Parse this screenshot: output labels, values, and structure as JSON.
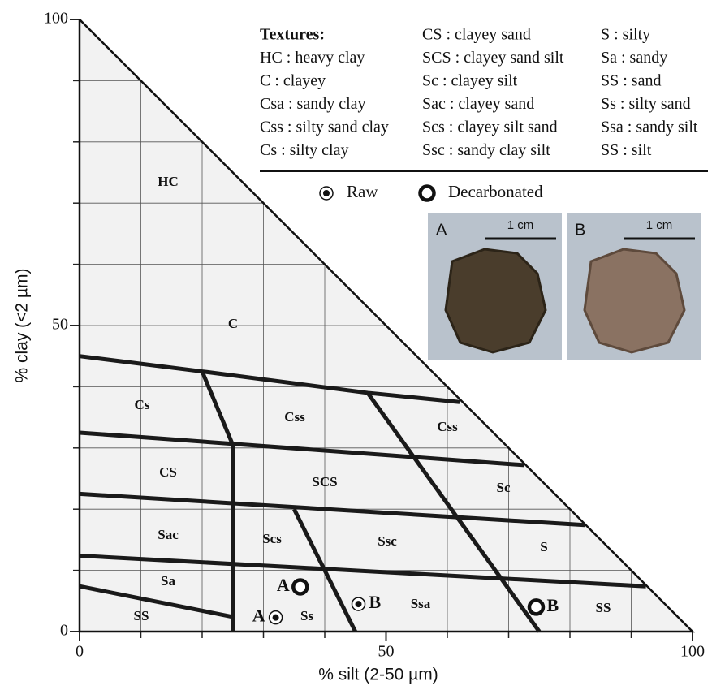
{
  "chart_data": {
    "type": "ternary-scatter",
    "x_label": "% silt (2-50 µm)",
    "y_label": "% clay (<2 µm)",
    "xlim": [
      0,
      100
    ],
    "ylim": [
      0,
      100
    ],
    "xticks": [
      0,
      50,
      100
    ],
    "yticks": [
      0,
      50,
      100
    ],
    "xminor": [
      10,
      20,
      30,
      40,
      50,
      60,
      70,
      80,
      90
    ],
    "yminor": [
      10,
      20,
      30,
      40,
      50,
      60,
      70,
      80,
      90
    ],
    "grid": true,
    "boundaries": [
      {
        "x": [
          0,
          20,
          47,
          62
        ],
        "y": [
          45,
          42.5,
          39,
          37.5
        ]
      },
      {
        "x": [
          0,
          72.5
        ],
        "y": [
          32.5,
          27.2
        ]
      },
      {
        "x": [
          0,
          82.4
        ],
        "y": [
          22.5,
          17.4
        ]
      },
      {
        "x": [
          0,
          92.4
        ],
        "y": [
          12.4,
          7.4
        ]
      },
      {
        "x": [
          0,
          25
        ],
        "y": [
          7.4,
          2.4
        ]
      },
      {
        "x": [
          20,
          25,
          25
        ],
        "y": [
          42.5,
          30.5,
          0
        ]
      },
      {
        "x": [
          35,
          45
        ],
        "y": [
          20,
          0
        ]
      },
      {
        "x": [
          47,
          75
        ],
        "y": [
          39,
          0
        ]
      }
    ],
    "regions": [
      "HC",
      "C",
      "Cs",
      "Css",
      "Css",
      "CS",
      "SCS",
      "Sc",
      "Sac",
      "Scs",
      "Ssc",
      "S",
      "Sa",
      "Ss",
      "Ssa",
      "SS",
      "SS"
    ],
    "series": [
      {
        "name": "Raw",
        "marker": "dot",
        "x": [
          32,
          45.5
        ],
        "values": [
          2.3,
          4.5
        ],
        "labels": [
          "A",
          "B"
        ]
      },
      {
        "name": "Decarbonated",
        "marker": "ring",
        "x": [
          36,
          74.5
        ],
        "values": [
          7.3,
          4
        ],
        "labels": [
          "A",
          "B"
        ]
      }
    ],
    "legend_title": "Textures:",
    "legend_entries": [
      "HC : heavy clay",
      "C : clayey",
      "Csa : sandy clay",
      "Css : silty sand clay",
      "Cs : silty clay",
      "CS : clayey sand",
      "SCS : clayey sand silt",
      "Sc : clayey silt",
      "Sac : clayey sand",
      "Scs : clayey silt sand",
      "Ssc : sandy clay silt",
      "S : silty",
      "Sa : sandy",
      "SS : sand",
      "Ss : silty sand",
      "Ssa : sandy silt",
      "SS : silt"
    ],
    "photos": [
      {
        "label": "A",
        "scale": "1 cm"
      },
      {
        "label": "B",
        "scale": "1 cm"
      }
    ]
  }
}
